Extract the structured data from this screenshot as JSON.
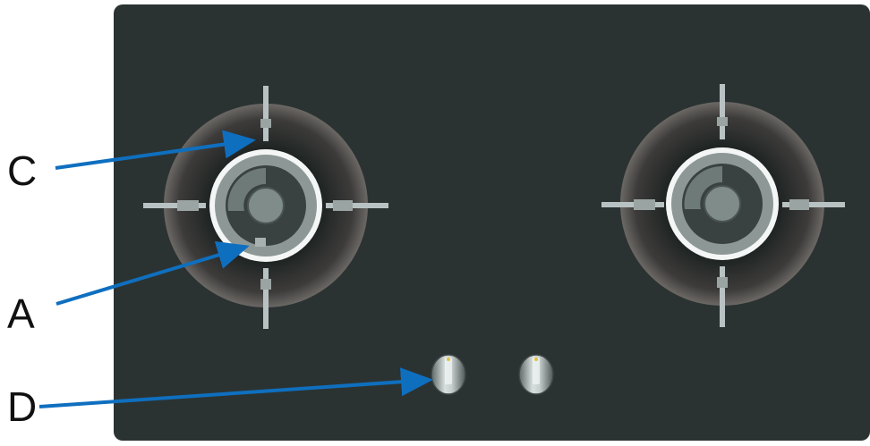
{
  "labels": {
    "c": "C",
    "a": "A",
    "d": "D"
  },
  "colors": {
    "cooktop": "#2b3332",
    "grate": "#b9c2c2",
    "burner_cap": "#7f8c8a",
    "arrow": "#0f6fbf",
    "label": "#111111"
  }
}
